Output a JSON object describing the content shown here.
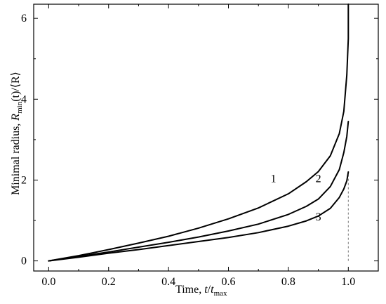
{
  "chart_data": {
    "type": "line",
    "xlabel": {
      "prefix": "Time, ",
      "main": "t",
      "slash": "/",
      "main2": "t",
      "sub": "max"
    },
    "ylabel": {
      "prefix": "Minimal radius, ",
      "main": "R",
      "sub": "min",
      "suffix": "(t)/⟨R⟩"
    },
    "xlim": [
      -0.05,
      1.1
    ],
    "ylim": [
      -0.25,
      6.35
    ],
    "xticks": [
      "0.0",
      "0.2",
      "0.4",
      "0.6",
      "0.8",
      "1.0"
    ],
    "yticks": [
      "0",
      "2",
      "4",
      "6"
    ],
    "guide_line": {
      "x": 1.0,
      "y_from": 0,
      "y_to": 2.2
    },
    "series": [
      {
        "name": "1",
        "x": [
          0.0,
          0.1,
          0.2,
          0.3,
          0.4,
          0.5,
          0.6,
          0.7,
          0.8,
          0.86,
          0.9,
          0.94,
          0.97,
          0.985,
          0.995,
          1.0,
          1.0
        ],
        "y": [
          0.0,
          0.13,
          0.28,
          0.44,
          0.61,
          0.81,
          1.04,
          1.31,
          1.66,
          1.96,
          2.21,
          2.6,
          3.15,
          3.7,
          4.6,
          5.5,
          6.35
        ]
      },
      {
        "name": "2",
        "x": [
          0.0,
          0.1,
          0.2,
          0.3,
          0.4,
          0.5,
          0.6,
          0.7,
          0.8,
          0.86,
          0.9,
          0.94,
          0.97,
          0.985,
          0.995,
          1.0
        ],
        "y": [
          0.0,
          0.11,
          0.22,
          0.34,
          0.46,
          0.59,
          0.74,
          0.91,
          1.15,
          1.35,
          1.53,
          1.84,
          2.26,
          2.68,
          3.08,
          3.45
        ]
      },
      {
        "name": "3",
        "x": [
          0.0,
          0.1,
          0.2,
          0.3,
          0.4,
          0.5,
          0.6,
          0.7,
          0.8,
          0.86,
          0.9,
          0.94,
          0.97,
          0.985,
          0.995,
          1.0
        ],
        "y": [
          0.0,
          0.09,
          0.19,
          0.28,
          0.38,
          0.48,
          0.58,
          0.7,
          0.86,
          0.99,
          1.11,
          1.3,
          1.57,
          1.78,
          1.98,
          2.2
        ]
      }
    ],
    "annotations": [
      {
        "text": "1",
        "x": 0.75,
        "y": 1.95
      },
      {
        "text": "2",
        "x": 0.9,
        "y": 1.95
      },
      {
        "text": "3",
        "x": 0.9,
        "y": 1.0
      }
    ]
  }
}
